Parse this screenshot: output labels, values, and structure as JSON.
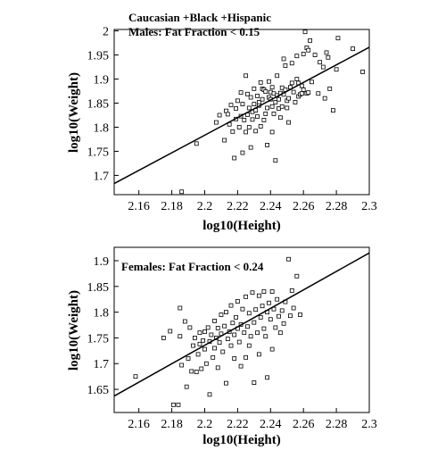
{
  "chart_data": [
    {
      "type": "scatter",
      "title": "",
      "annotations": [
        "Caucasian +Black +Hispanic",
        "Males: Fat Fraction < 0.15"
      ],
      "xlabel": "log10(Height)",
      "ylabel": "log10(Weight)",
      "xlim": [
        2.145,
        2.3
      ],
      "ylim": [
        1.66,
        2.003
      ],
      "xticks": [
        "2.16",
        "2.18",
        "2.2",
        "2.22",
        "2.24",
        "2.26",
        "2.28",
        "2.3"
      ],
      "yticks": [
        "1.7",
        "1.75",
        "1.8",
        "1.85",
        "1.9",
        "1.95",
        "2"
      ],
      "grid": false,
      "legend": "none",
      "trendline": {
        "x": [
          2.145,
          2.3
        ],
        "y": [
          1.683,
          1.966
        ]
      },
      "points": [
        [
          2.186,
          1.666
        ],
        [
          2.195,
          1.766
        ],
        [
          2.207,
          1.81
        ],
        [
          2.209,
          1.825
        ],
        [
          2.212,
          1.773
        ],
        [
          2.213,
          1.834
        ],
        [
          2.214,
          1.827
        ],
        [
          2.215,
          1.806
        ],
        [
          2.216,
          1.846
        ],
        [
          2.217,
          1.791
        ],
        [
          2.218,
          1.736
        ],
        [
          2.219,
          1.817
        ],
        [
          2.219,
          1.839
        ],
        [
          2.22,
          1.855
        ],
        [
          2.221,
          1.8
        ],
        [
          2.222,
          1.823
        ],
        [
          2.222,
          1.872
        ],
        [
          2.223,
          1.747
        ],
        [
          2.223,
          1.848
        ],
        [
          2.224,
          1.815
        ],
        [
          2.225,
          1.907
        ],
        [
          2.225,
          1.79
        ],
        [
          2.226,
          1.869
        ],
        [
          2.226,
          1.826
        ],
        [
          2.227,
          1.84
        ],
        [
          2.227,
          1.8
        ],
        [
          2.228,
          1.862
        ],
        [
          2.228,
          1.758
        ],
        [
          2.229,
          1.832
        ],
        [
          2.229,
          1.816
        ],
        [
          2.23,
          1.848
        ],
        [
          2.23,
          1.88
        ],
        [
          2.231,
          1.792
        ],
        [
          2.231,
          1.835
        ],
        [
          2.232,
          1.865
        ],
        [
          2.232,
          1.822
        ],
        [
          2.233,
          1.852
        ],
        [
          2.233,
          1.845
        ],
        [
          2.234,
          1.802
        ],
        [
          2.234,
          1.893
        ],
        [
          2.235,
          1.88
        ],
        [
          2.235,
          1.858
        ],
        [
          2.236,
          1.815
        ],
        [
          2.236,
          1.878
        ],
        [
          2.237,
          1.874
        ],
        [
          2.237,
          1.828
        ],
        [
          2.238,
          1.84
        ],
        [
          2.238,
          1.763
        ],
        [
          2.239,
          1.862
        ],
        [
          2.239,
          1.895
        ],
        [
          2.24,
          1.873
        ],
        [
          2.24,
          1.858
        ],
        [
          2.241,
          1.883
        ],
        [
          2.241,
          1.79
        ],
        [
          2.241,
          1.843
        ],
        [
          2.242,
          1.87
        ],
        [
          2.242,
          1.828
        ],
        [
          2.243,
          1.731
        ],
        [
          2.243,
          1.852
        ],
        [
          2.244,
          1.866
        ],
        [
          2.244,
          1.907
        ],
        [
          2.245,
          1.839
        ],
        [
          2.245,
          1.858
        ],
        [
          2.246,
          1.871
        ],
        [
          2.246,
          1.82
        ],
        [
          2.247,
          1.882
        ],
        [
          2.247,
          1.843
        ],
        [
          2.248,
          1.942
        ],
        [
          2.248,
          1.868
        ],
        [
          2.249,
          1.928
        ],
        [
          2.249,
          1.878
        ],
        [
          2.25,
          1.84
        ],
        [
          2.25,
          1.855
        ],
        [
          2.251,
          1.86
        ],
        [
          2.251,
          1.81
        ],
        [
          2.252,
          1.883
        ],
        [
          2.253,
          1.933
        ],
        [
          2.253,
          1.892
        ],
        [
          2.254,
          1.873
        ],
        [
          2.255,
          1.852
        ],
        [
          2.256,
          1.9
        ],
        [
          2.256,
          1.948
        ],
        [
          2.257,
          1.864
        ],
        [
          2.257,
          1.892
        ],
        [
          2.258,
          1.868
        ],
        [
          2.259,
          1.87
        ],
        [
          2.259,
          1.886
        ],
        [
          2.26,
          1.952
        ],
        [
          2.26,
          1.878
        ],
        [
          2.261,
          1.998
        ],
        [
          2.262,
          1.965
        ],
        [
          2.262,
          1.87
        ],
        [
          2.263,
          1.872
        ],
        [
          2.263,
          1.96
        ],
        [
          2.264,
          1.98
        ],
        [
          2.265,
          1.894
        ],
        [
          2.267,
          1.95
        ],
        [
          2.269,
          1.87
        ],
        [
          2.27,
          1.935
        ],
        [
          2.272,
          1.925
        ],
        [
          2.273,
          1.86
        ],
        [
          2.274,
          1.955
        ],
        [
          2.275,
          1.945
        ],
        [
          2.276,
          1.88
        ],
        [
          2.278,
          1.835
        ],
        [
          2.28,
          1.92
        ],
        [
          2.281,
          1.985
        ],
        [
          2.29,
          1.963
        ],
        [
          2.296,
          1.915
        ]
      ]
    },
    {
      "type": "scatter",
      "title": "",
      "annotations": [
        "Females: Fat Fraction < 0.24"
      ],
      "xlabel": "log10(Height)",
      "ylabel": "log10(Weight)",
      "xlim": [
        2.145,
        2.3
      ],
      "ylim": [
        1.605,
        1.926
      ],
      "xticks": [
        "2.16",
        "2.18",
        "2.2",
        "2.22",
        "2.24",
        "2.26",
        "2.28",
        "2.3"
      ],
      "yticks": [
        "1.65",
        "1.7",
        "1.75",
        "1.8",
        "1.85",
        "1.9"
      ],
      "grid": false,
      "legend": "none",
      "trendline": {
        "x": [
          2.145,
          2.3
        ],
        "y": [
          1.637,
          1.915
        ]
      },
      "points": [
        [
          2.158,
          1.675
        ],
        [
          2.175,
          1.75
        ],
        [
          2.179,
          1.763
        ],
        [
          2.181,
          1.62
        ],
        [
          2.184,
          1.62
        ],
        [
          2.185,
          1.808
        ],
        [
          2.185,
          1.753
        ],
        [
          2.186,
          1.697
        ],
        [
          2.188,
          1.782
        ],
        [
          2.189,
          1.655
        ],
        [
          2.19,
          1.71
        ],
        [
          2.191,
          1.77
        ],
        [
          2.192,
          1.685
        ],
        [
          2.193,
          1.735
        ],
        [
          2.194,
          1.75
        ],
        [
          2.195,
          1.684
        ],
        [
          2.196,
          1.718
        ],
        [
          2.197,
          1.76
        ],
        [
          2.197,
          1.738
        ],
        [
          2.198,
          1.69
        ],
        [
          2.199,
          1.745
        ],
        [
          2.2,
          1.762
        ],
        [
          2.2,
          1.728
        ],
        [
          2.201,
          1.7
        ],
        [
          2.202,
          1.77
        ],
        [
          2.203,
          1.743
        ],
        [
          2.203,
          1.64
        ],
        [
          2.204,
          1.756
        ],
        [
          2.205,
          1.712
        ],
        [
          2.206,
          1.783
        ],
        [
          2.206,
          1.73
        ],
        [
          2.207,
          1.75
        ],
        [
          2.208,
          1.769
        ],
        [
          2.208,
          1.692
        ],
        [
          2.209,
          1.741
        ],
        [
          2.21,
          1.795
        ],
        [
          2.21,
          1.758
        ],
        [
          2.211,
          1.723
        ],
        [
          2.212,
          1.773
        ],
        [
          2.213,
          1.8
        ],
        [
          2.213,
          1.662
        ],
        [
          2.214,
          1.748
        ],
        [
          2.215,
          1.762
        ],
        [
          2.216,
          1.735
        ],
        [
          2.216,
          1.813
        ],
        [
          2.217,
          1.779
        ],
        [
          2.218,
          1.756
        ],
        [
          2.218,
          1.71
        ],
        [
          2.219,
          1.79
        ],
        [
          2.22,
          1.768
        ],
        [
          2.22,
          1.821
        ],
        [
          2.221,
          1.742
        ],
        [
          2.222,
          1.776
        ],
        [
          2.222,
          1.695
        ],
        [
          2.223,
          1.806
        ],
        [
          2.224,
          1.76
        ],
        [
          2.225,
          1.83
        ],
        [
          2.225,
          1.712
        ],
        [
          2.226,
          1.772
        ],
        [
          2.227,
          1.798
        ],
        [
          2.227,
          1.735
        ],
        [
          2.228,
          1.753
        ],
        [
          2.229,
          1.838
        ],
        [
          2.23,
          1.78
        ],
        [
          2.23,
          1.663
        ],
        [
          2.231,
          1.805
        ],
        [
          2.232,
          1.76
        ],
        [
          2.233,
          1.832
        ],
        [
          2.233,
          1.718
        ],
        [
          2.234,
          1.79
        ],
        [
          2.235,
          1.812
        ],
        [
          2.236,
          1.768
        ],
        [
          2.236,
          1.84
        ],
        [
          2.237,
          1.753
        ],
        [
          2.238,
          1.8
        ],
        [
          2.238,
          1.673
        ],
        [
          2.239,
          1.818
        ],
        [
          2.24,
          1.786
        ],
        [
          2.241,
          1.84
        ],
        [
          2.241,
          1.728
        ],
        [
          2.242,
          1.806
        ],
        [
          2.243,
          1.77
        ],
        [
          2.244,
          1.825
        ],
        [
          2.245,
          1.792
        ],
        [
          2.246,
          1.76
        ],
        [
          2.247,
          1.803
        ],
        [
          2.248,
          1.778
        ],
        [
          2.249,
          1.82
        ],
        [
          2.251,
          1.903
        ],
        [
          2.252,
          1.793
        ],
        [
          2.253,
          1.842
        ],
        [
          2.254,
          1.808
        ],
        [
          2.256,
          1.87
        ],
        [
          2.258,
          1.795
        ]
      ]
    }
  ]
}
